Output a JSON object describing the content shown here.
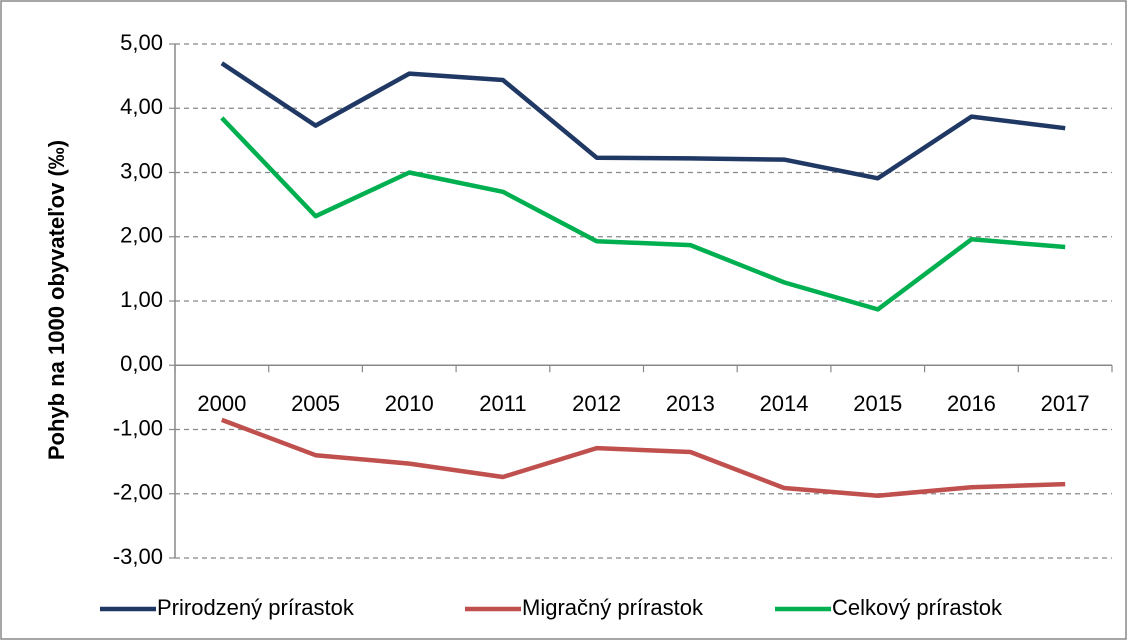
{
  "chart_data": {
    "type": "line",
    "y_label": "Pohyb na 1000 obyvateľov (‰)",
    "categories": [
      "2000",
      "2005",
      "2010",
      "2011",
      "2012",
      "2013",
      "2014",
      "2015",
      "2016",
      "2017"
    ],
    "series": [
      {
        "name": "Prirodzený prírastok",
        "color": "#203864",
        "values": [
          4.7,
          3.73,
          4.54,
          4.44,
          3.23,
          3.22,
          3.2,
          2.91,
          3.87,
          3.69
        ]
      },
      {
        "name": "Migračný prírastok",
        "color": "#c0504d",
        "values": [
          -0.85,
          -1.4,
          -1.53,
          -1.74,
          -1.29,
          -1.35,
          -1.91,
          -2.03,
          -1.9,
          -1.85
        ]
      },
      {
        "name": "Celkový prírastok",
        "color": "#00b050",
        "values": [
          3.85,
          2.32,
          3.0,
          2.7,
          1.93,
          1.87,
          1.29,
          0.87,
          1.96,
          1.84
        ]
      }
    ],
    "ylim": [
      -3,
      5
    ],
    "yticks": [
      {
        "value": -3,
        "label": "-3,00"
      },
      {
        "value": -2,
        "label": "-2,00"
      },
      {
        "value": -1,
        "label": "-1,00"
      },
      {
        "value": 0,
        "label": "0,00"
      },
      {
        "value": 1,
        "label": "1,00"
      },
      {
        "value": 2,
        "label": "2,00"
      },
      {
        "value": 3,
        "label": "3,00"
      },
      {
        "value": 4,
        "label": "4,00"
      },
      {
        "value": 5,
        "label": "5,00"
      }
    ],
    "grid": true,
    "legend": "bottom"
  }
}
